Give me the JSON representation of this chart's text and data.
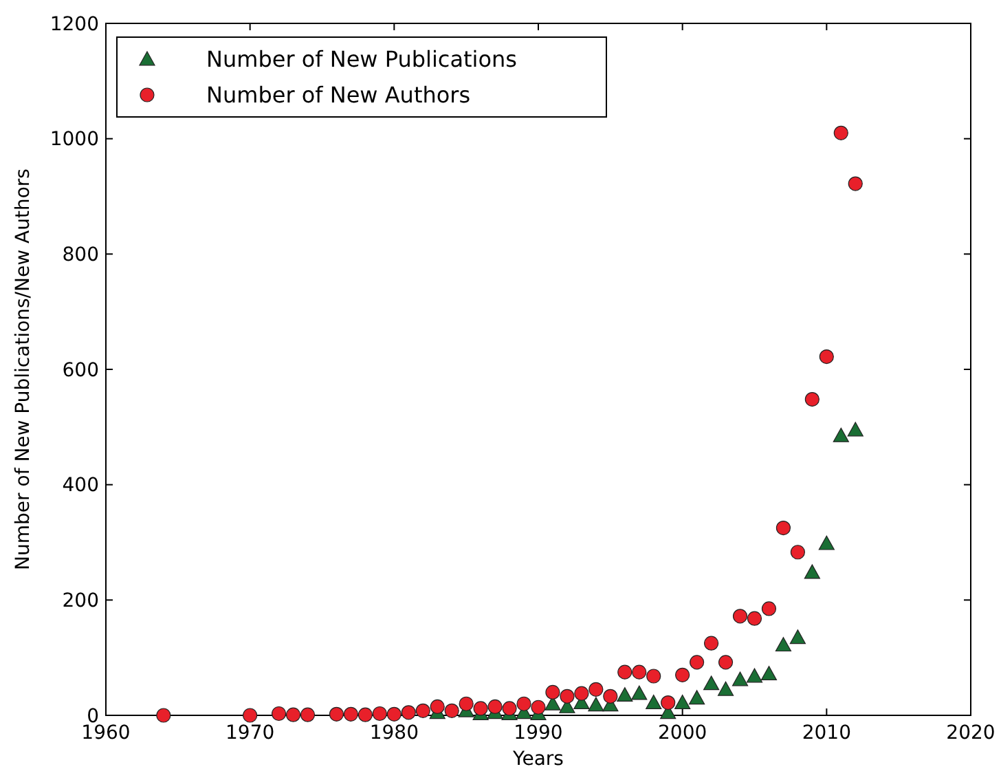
{
  "chart_data": {
    "type": "scatter",
    "xlabel": "Years",
    "ylabel": "Number of New Publications/New Authors",
    "xlim": [
      1960,
      2020
    ],
    "xticks": [
      1960,
      1970,
      1980,
      1990,
      2000,
      2010,
      2020
    ],
    "ylim": [
      0,
      1200
    ],
    "yticks": [
      0,
      200,
      400,
      600,
      800,
      1000,
      1200
    ],
    "grid": false,
    "legend": "top left",
    "series": [
      {
        "name": "Number of New Publications",
        "color": "#1a6e34",
        "marker": "triangle",
        "x": [
          1983,
          1985,
          1986,
          1987,
          1988,
          1989,
          1990,
          1991,
          1992,
          1993,
          1994,
          1995,
          1996,
          1997,
          1998,
          1999,
          2000,
          2001,
          2002,
          2003,
          2004,
          2005,
          2006,
          2007,
          2008,
          2009,
          2010,
          2011,
          2012
        ],
        "values": [
          5,
          8,
          3,
          5,
          3,
          5,
          3,
          20,
          15,
          22,
          18,
          18,
          35,
          38,
          22,
          5,
          22,
          30,
          55,
          45,
          62,
          68,
          72,
          122,
          135,
          248,
          298,
          485,
          495
        ]
      },
      {
        "name": "Number of New Authors",
        "color": "#e8202a",
        "marker": "circle",
        "x": [
          1964,
          1970,
          1972,
          1973,
          1974,
          1976,
          1977,
          1978,
          1979,
          1980,
          1981,
          1982,
          1983,
          1984,
          1985,
          1986,
          1987,
          1988,
          1989,
          1990,
          1991,
          1992,
          1993,
          1994,
          1995,
          1996,
          1997,
          1998,
          1999,
          2000,
          2001,
          2002,
          2003,
          2004,
          2005,
          2006,
          2007,
          2008,
          2009,
          2010,
          2011,
          2012
        ],
        "values": [
          0,
          0,
          3,
          1,
          1,
          2,
          2,
          1,
          3,
          2,
          5,
          8,
          15,
          8,
          20,
          12,
          15,
          12,
          20,
          14,
          40,
          33,
          38,
          45,
          33,
          75,
          75,
          68,
          22,
          70,
          92,
          125,
          92,
          172,
          168,
          185,
          325,
          283,
          548,
          622,
          1010,
          922
        ]
      }
    ]
  }
}
